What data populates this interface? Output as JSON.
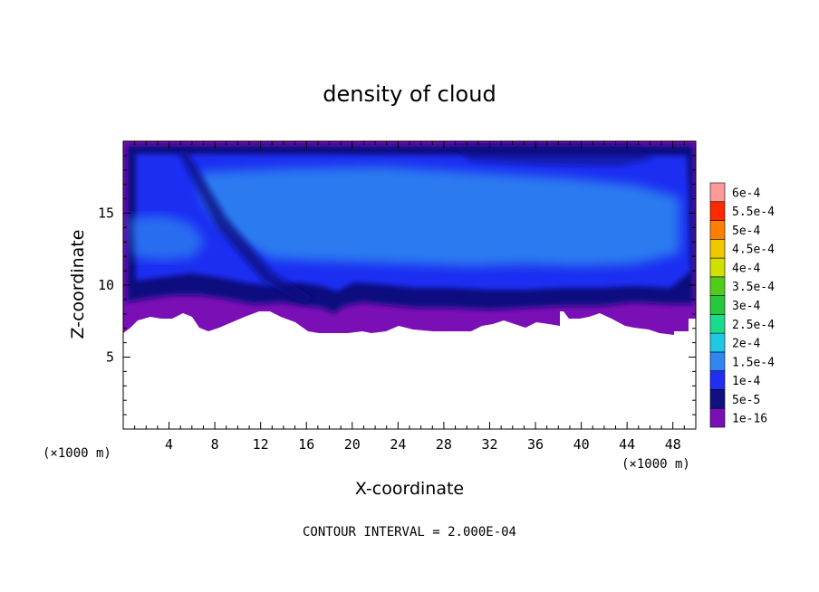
{
  "chart_data": {
    "type": "heatmap",
    "title": "density of cloud",
    "xlabel": "X-coordinate",
    "ylabel": "Z-coordinate",
    "x_unit_label": "(×1000 m)",
    "y_unit_label": "(×1000 m)",
    "footer": "CONTOUR INTERVAL = 2.000E-04",
    "xlim": [
      0,
      50
    ],
    "ylim": [
      0,
      20
    ],
    "x_ticks": [
      4,
      8,
      12,
      16,
      20,
      24,
      28,
      32,
      36,
      40,
      44,
      48
    ],
    "y_ticks": [
      5,
      10,
      15
    ],
    "colorbar": {
      "levels": [
        "1e-16",
        "5e-5",
        "1e-4",
        "1.5e-4",
        "2e-4",
        "2.5e-4",
        "3e-4",
        "3.5e-4",
        "4e-4",
        "4.5e-4",
        "5e-4",
        "5.5e-4",
        "6e-4"
      ],
      "colors": [
        "#7a0fb5",
        "#101080",
        "#1f2ef2",
        "#2e88f0",
        "#1ec9e6",
        "#18dc8c",
        "#26c73a",
        "#52cc1a",
        "#d2e000",
        "#f0c800",
        "#ff8000",
        "#ff2a00",
        "#ff9a9a"
      ]
    },
    "cloud_region": {
      "base_height_km": 7,
      "top_height_km": 19.5,
      "max_value": "1.5e-4"
    }
  }
}
